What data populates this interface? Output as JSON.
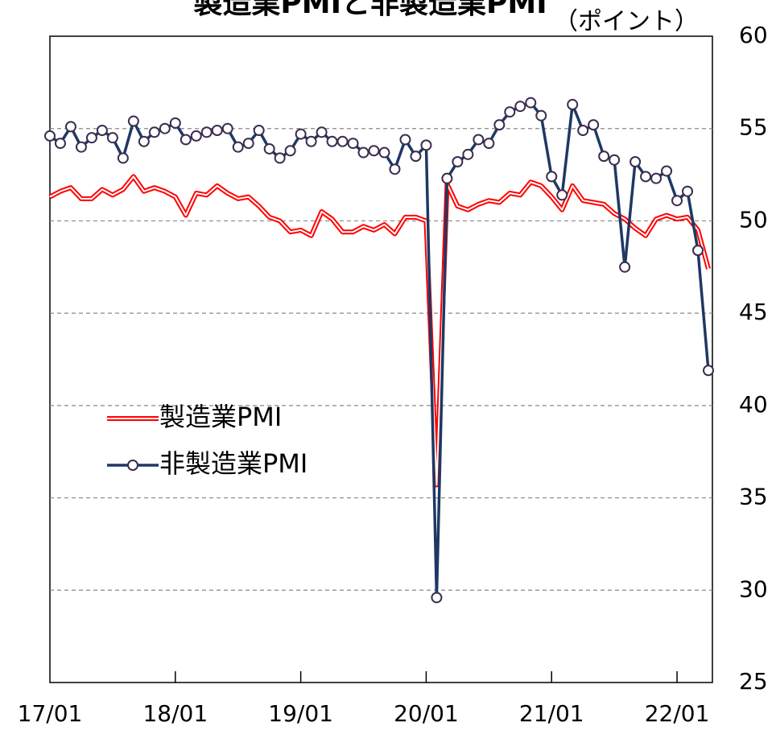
{
  "chart_data": {
    "type": "line",
    "title": "製造業PMIと非製造業PMI",
    "y_axis_label": "（ポイント）",
    "categories": [
      "17/01",
      null,
      null,
      null,
      null,
      null,
      null,
      null,
      null,
      null,
      null,
      null,
      "18/01",
      null,
      null,
      null,
      null,
      null,
      null,
      null,
      null,
      null,
      null,
      null,
      "19/01",
      null,
      null,
      null,
      null,
      null,
      null,
      null,
      null,
      null,
      null,
      null,
      "20/01",
      null,
      null,
      null,
      null,
      null,
      null,
      null,
      null,
      null,
      null,
      null,
      "21/01",
      null,
      null,
      null,
      null,
      null,
      null,
      null,
      null,
      null,
      null,
      null,
      "22/01",
      null,
      null,
      null
    ],
    "series": [
      {
        "name": "製造業PMI",
        "color": "#ff0000",
        "values": [
          51.3,
          51.6,
          51.8,
          51.2,
          51.2,
          51.7,
          51.4,
          51.7,
          52.4,
          51.6,
          51.8,
          51.6,
          51.3,
          50.3,
          51.5,
          51.4,
          51.9,
          51.5,
          51.2,
          51.3,
          50.8,
          50.2,
          50.0,
          49.4,
          49.5,
          49.2,
          50.5,
          50.1,
          49.4,
          49.4,
          49.7,
          49.5,
          49.8,
          49.3,
          50.2,
          50.2,
          50.0,
          35.7,
          52.0,
          50.8,
          50.6,
          50.9,
          51.1,
          51.0,
          51.5,
          51.4,
          52.1,
          51.9,
          51.3,
          50.6,
          51.9,
          51.1,
          51.0,
          50.9,
          50.4,
          50.1,
          49.6,
          49.2,
          50.1,
          50.3,
          50.1,
          50.2,
          49.5,
          47.4
        ]
      },
      {
        "name": "非製造業PMI",
        "color": "#1f3864",
        "values": [
          54.6,
          54.2,
          55.1,
          54.0,
          54.5,
          54.9,
          54.5,
          53.4,
          55.4,
          54.3,
          54.8,
          55.0,
          55.3,
          54.4,
          54.6,
          54.8,
          54.9,
          55.0,
          54.0,
          54.2,
          54.9,
          53.9,
          53.4,
          53.8,
          54.7,
          54.3,
          54.8,
          54.3,
          54.3,
          54.2,
          53.7,
          53.8,
          53.7,
          52.8,
          54.4,
          53.5,
          54.1,
          29.6,
          52.3,
          53.2,
          53.6,
          54.4,
          54.2,
          55.2,
          55.9,
          56.2,
          56.4,
          55.7,
          52.4,
          51.4,
          56.3,
          54.9,
          55.2,
          53.5,
          53.3,
          47.5,
          53.2,
          52.4,
          52.3,
          52.7,
          51.1,
          51.6,
          48.4,
          41.9
        ]
      }
    ],
    "ylim": [
      25,
      60
    ],
    "yticks": [
      25,
      30,
      35,
      40,
      45,
      50,
      55,
      60
    ],
    "grid": true
  }
}
